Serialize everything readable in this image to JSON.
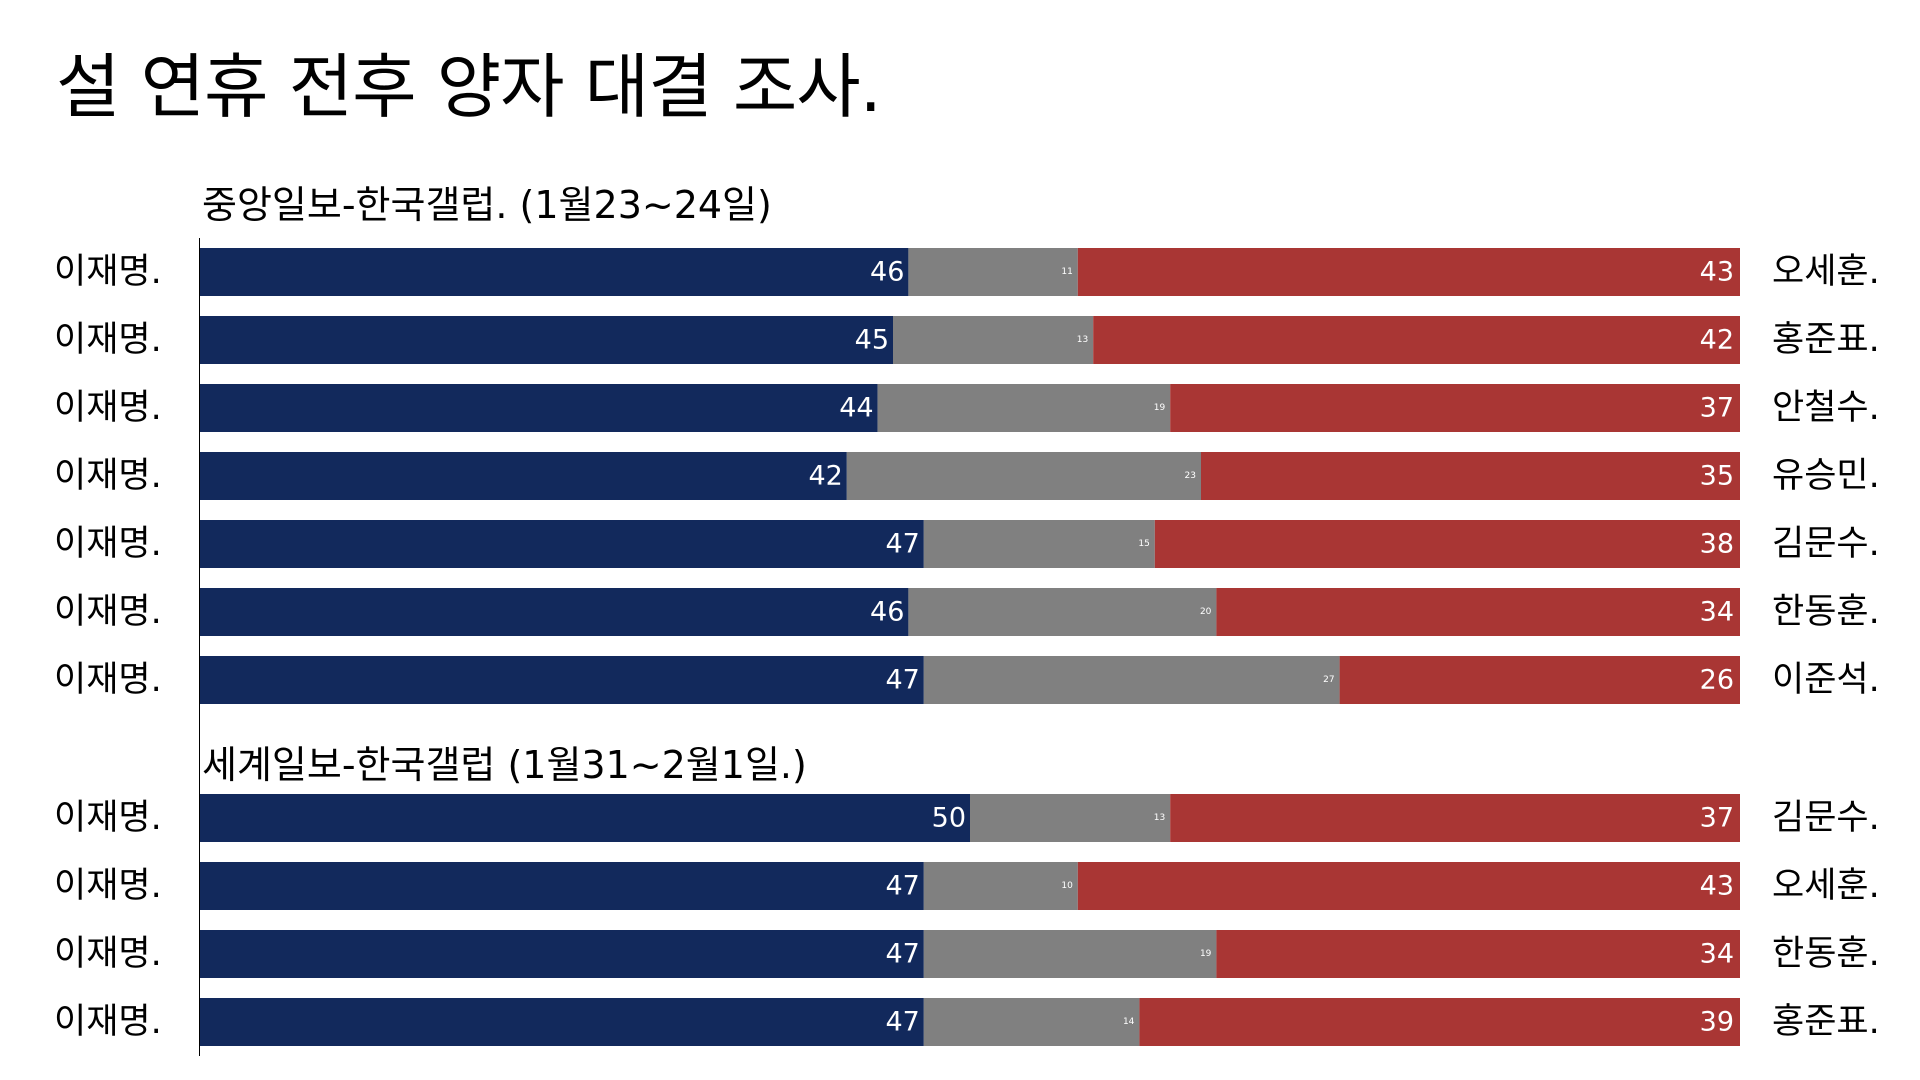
{
  "title": "설 연휴 전후 양자 대결 조사.",
  "colors": {
    "left": "#12295c",
    "undecided": "#808080",
    "right": "#a93634"
  },
  "chart_data": {
    "type": "bar",
    "stacked": true,
    "orientation": "horizontal",
    "xlim": [
      0,
      100
    ],
    "groups": [
      {
        "title": "중앙일보-한국갤럽. (1월23~24일)",
        "rows": [
          {
            "left_name": "이재명.",
            "left": 46,
            "undecided": 11,
            "right": 43,
            "right_name": "오세훈."
          },
          {
            "left_name": "이재명.",
            "left": 45,
            "undecided": 13,
            "right": 42,
            "right_name": "홍준표."
          },
          {
            "left_name": "이재명.",
            "left": 44,
            "undecided": 19,
            "right": 37,
            "right_name": "안철수."
          },
          {
            "left_name": "이재명.",
            "left": 42,
            "undecided": 23,
            "right": 35,
            "right_name": "유승민."
          },
          {
            "left_name": "이재명.",
            "left": 47,
            "undecided": 15,
            "right": 38,
            "right_name": "김문수."
          },
          {
            "left_name": "이재명.",
            "left": 46,
            "undecided": 20,
            "right": 34,
            "right_name": "한동훈."
          },
          {
            "left_name": "이재명.",
            "left": 47,
            "undecided": 27,
            "right": 26,
            "right_name": "이준석."
          }
        ]
      },
      {
        "title": "세계일보-한국갤럽 (1월31~2월1일.)",
        "rows": [
          {
            "left_name": "이재명.",
            "left": 50,
            "undecided": 13,
            "right": 37,
            "right_name": "김문수."
          },
          {
            "left_name": "이재명.",
            "left": 47,
            "undecided": 10,
            "right": 43,
            "right_name": "오세훈."
          },
          {
            "left_name": "이재명.",
            "left": 47,
            "undecided": 19,
            "right": 34,
            "right_name": "한동훈."
          },
          {
            "left_name": "이재명.",
            "left": 47,
            "undecided": 14,
            "right": 39,
            "right_name": "홍준표."
          }
        ]
      }
    ]
  }
}
